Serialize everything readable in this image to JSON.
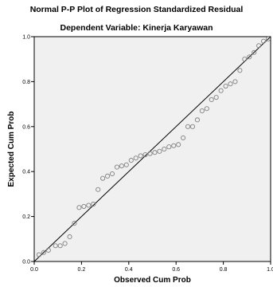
{
  "chart_data": {
    "type": "scatter",
    "title": "Normal P-P Plot of Regression Standardized Residual",
    "subtitle": "Dependent Variable: Kinerja Karyawan",
    "xlabel": "Observed Cum Prob",
    "ylabel": "Expected Cum Prob",
    "xlim": [
      0,
      1
    ],
    "ylim": [
      0,
      1
    ],
    "x_ticks": [
      "0.0",
      "0.2",
      "0.4",
      "0.6",
      "0.8",
      "1.0"
    ],
    "y_ticks": [
      "0.0",
      "0.2",
      "0.4",
      "0.6",
      "0.8",
      "1.0"
    ],
    "reference_line": [
      [
        0,
        0
      ],
      [
        1,
        1
      ]
    ],
    "plot_background": "#f0f0f0",
    "marker_color": "#808080",
    "points": [
      [
        0.02,
        0.03
      ],
      [
        0.04,
        0.04
      ],
      [
        0.06,
        0.05
      ],
      [
        0.09,
        0.07
      ],
      [
        0.11,
        0.07
      ],
      [
        0.13,
        0.08
      ],
      [
        0.15,
        0.11
      ],
      [
        0.17,
        0.17
      ],
      [
        0.19,
        0.24
      ],
      [
        0.21,
        0.245
      ],
      [
        0.23,
        0.25
      ],
      [
        0.25,
        0.255
      ],
      [
        0.27,
        0.32
      ],
      [
        0.29,
        0.37
      ],
      [
        0.31,
        0.38
      ],
      [
        0.33,
        0.39
      ],
      [
        0.35,
        0.42
      ],
      [
        0.37,
        0.425
      ],
      [
        0.39,
        0.43
      ],
      [
        0.41,
        0.45
      ],
      [
        0.43,
        0.46
      ],
      [
        0.45,
        0.47
      ],
      [
        0.47,
        0.475
      ],
      [
        0.49,
        0.48
      ],
      [
        0.51,
        0.485
      ],
      [
        0.53,
        0.49
      ],
      [
        0.55,
        0.5
      ],
      [
        0.57,
        0.51
      ],
      [
        0.59,
        0.515
      ],
      [
        0.61,
        0.52
      ],
      [
        0.63,
        0.55
      ],
      [
        0.65,
        0.6
      ],
      [
        0.67,
        0.6
      ],
      [
        0.69,
        0.63
      ],
      [
        0.71,
        0.67
      ],
      [
        0.73,
        0.68
      ],
      [
        0.75,
        0.72
      ],
      [
        0.77,
        0.73
      ],
      [
        0.79,
        0.76
      ],
      [
        0.81,
        0.78
      ],
      [
        0.83,
        0.79
      ],
      [
        0.85,
        0.8
      ],
      [
        0.87,
        0.85
      ],
      [
        0.89,
        0.9
      ],
      [
        0.91,
        0.91
      ],
      [
        0.93,
        0.93
      ],
      [
        0.95,
        0.96
      ],
      [
        0.97,
        0.98
      ],
      [
        0.99,
        0.99
      ]
    ]
  }
}
